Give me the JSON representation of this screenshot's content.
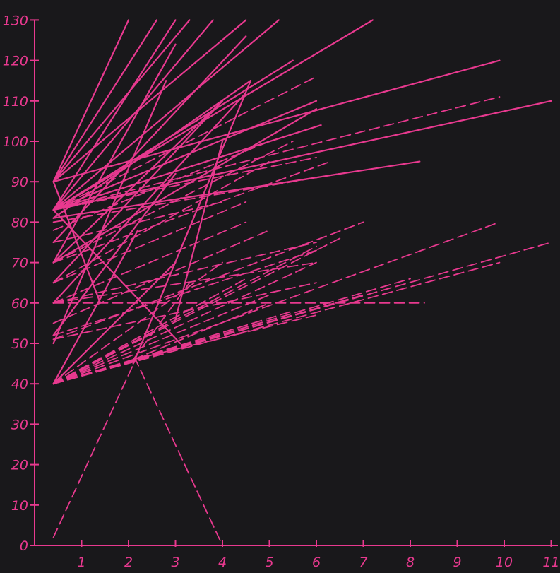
{
  "chart_data": {
    "type": "line",
    "title": "",
    "xlabel": "",
    "ylabel": "",
    "xlim": [
      0,
      11
    ],
    "ylim": [
      0,
      130
    ],
    "x_ticks": [
      "1",
      "2",
      "3",
      "4",
      "5",
      "6",
      "7",
      "8",
      "9",
      "10",
      "11"
    ],
    "y_ticks": [
      "0",
      "10",
      "20",
      "30",
      "40",
      "50",
      "60",
      "70",
      "80",
      "90",
      "100",
      "110",
      "120",
      "130"
    ],
    "grid": false,
    "legend": "none",
    "colors": {
      "background": "#19181b",
      "ink": "#e8398f"
    },
    "series": [
      {
        "style": "solid",
        "points": [
          [
            0.4,
            90
          ],
          [
            2.0,
            130
          ]
        ]
      },
      {
        "style": "solid",
        "points": [
          [
            0.4,
            90
          ],
          [
            2.6,
            130
          ]
        ]
      },
      {
        "style": "solid",
        "points": [
          [
            0.4,
            90
          ],
          [
            3.3,
            130
          ]
        ]
      },
      {
        "style": "solid",
        "points": [
          [
            0.4,
            90
          ],
          [
            4.5,
            130
          ]
        ]
      },
      {
        "style": "solid",
        "points": [
          [
            0.4,
            90
          ],
          [
            9.9,
            120
          ]
        ]
      },
      {
        "style": "solid",
        "points": [
          [
            0.4,
            90
          ],
          [
            1.4,
            60
          ]
        ]
      },
      {
        "style": "solid",
        "points": [
          [
            0.4,
            83
          ],
          [
            3.0,
            130
          ]
        ]
      },
      {
        "style": "solid",
        "points": [
          [
            0.4,
            83
          ],
          [
            3.8,
            130
          ]
        ]
      },
      {
        "style": "solid",
        "points": [
          [
            0.4,
            83
          ],
          [
            5.2,
            130
          ]
        ]
      },
      {
        "style": "solid",
        "points": [
          [
            0.4,
            83
          ],
          [
            5.5,
            120
          ]
        ]
      },
      {
        "style": "solid",
        "points": [
          [
            0.4,
            83
          ],
          [
            7.2,
            130
          ]
        ]
      },
      {
        "style": "solid",
        "points": [
          [
            0.4,
            83
          ],
          [
            6.0,
            110
          ]
        ]
      },
      {
        "style": "solid",
        "points": [
          [
            0.4,
            83
          ],
          [
            6.1,
            104
          ]
        ]
      },
      {
        "style": "solid",
        "points": [
          [
            0.4,
            83
          ],
          [
            11.0,
            110
          ]
        ]
      },
      {
        "style": "solid",
        "points": [
          [
            0.4,
            83
          ],
          [
            3.1,
            50
          ]
        ]
      },
      {
        "style": "solid",
        "points": [
          [
            0.4,
            81
          ],
          [
            4.6,
            115
          ]
        ]
      },
      {
        "style": "solid",
        "points": [
          [
            0.4,
            81
          ],
          [
            8.2,
            95
          ]
        ]
      },
      {
        "style": "solid",
        "points": [
          [
            0.4,
            75
          ],
          [
            4.5,
            126
          ]
        ]
      },
      {
        "style": "solid",
        "points": [
          [
            0.4,
            70
          ],
          [
            3.0,
            124
          ]
        ]
      },
      {
        "style": "solid",
        "points": [
          [
            0.4,
            70
          ],
          [
            4.0,
            110
          ]
        ]
      },
      {
        "style": "solid",
        "points": [
          [
            0.4,
            70
          ],
          [
            6.0,
            108
          ]
        ]
      },
      {
        "style": "solid",
        "points": [
          [
            0.4,
            65
          ],
          [
            4.0,
            110
          ]
        ]
      },
      {
        "style": "solid",
        "points": [
          [
            0.4,
            60
          ],
          [
            4.5,
            112
          ]
        ]
      },
      {
        "style": "solid",
        "points": [
          [
            0.4,
            52
          ],
          [
            3.0,
            92
          ]
        ]
      },
      {
        "style": "solid",
        "points": [
          [
            0.4,
            50
          ],
          [
            2.8,
            115
          ]
        ]
      },
      {
        "style": "solid",
        "points": [
          [
            0.4,
            40
          ],
          [
            2.2,
            78
          ]
        ]
      },
      {
        "style": "solid",
        "points": [
          [
            0.4,
            40
          ],
          [
            3.0,
            70
          ]
        ]
      },
      {
        "style": "solid",
        "points": [
          [
            2.1,
            45
          ],
          [
            4.6,
            115
          ]
        ]
      },
      {
        "style": "solid",
        "points": [
          [
            3.0,
            56
          ],
          [
            4.0,
            100
          ]
        ]
      },
      {
        "style": "dashed",
        "points": [
          [
            0.4,
            83
          ],
          [
            6.0,
            116
          ]
        ]
      },
      {
        "style": "dashed",
        "points": [
          [
            0.4,
            83
          ],
          [
            9.9,
            111
          ]
        ]
      },
      {
        "style": "dashed",
        "points": [
          [
            0.4,
            83
          ],
          [
            6.0,
            96
          ]
        ]
      },
      {
        "style": "dashed",
        "points": [
          [
            0.4,
            80
          ],
          [
            6.5,
            92
          ]
        ]
      },
      {
        "style": "dashed",
        "points": [
          [
            0.4,
            78
          ],
          [
            5.0,
            100
          ]
        ]
      },
      {
        "style": "dashed",
        "points": [
          [
            0.4,
            75
          ],
          [
            4.0,
            85
          ]
        ]
      },
      {
        "style": "dashed",
        "points": [
          [
            0.4,
            70
          ],
          [
            5.5,
            100
          ]
        ]
      },
      {
        "style": "dashed",
        "points": [
          [
            0.4,
            70
          ],
          [
            6.3,
            95
          ]
        ]
      },
      {
        "style": "dashed",
        "points": [
          [
            0.4,
            65
          ],
          [
            5.0,
            95
          ]
        ]
      },
      {
        "style": "dashed",
        "points": [
          [
            0.4,
            65
          ],
          [
            4.5,
            85
          ]
        ]
      },
      {
        "style": "dashed",
        "points": [
          [
            0.4,
            60
          ],
          [
            4.5,
            80
          ]
        ]
      },
      {
        "style": "dashed",
        "points": [
          [
            0.4,
            60
          ],
          [
            6.0,
            75
          ]
        ]
      },
      {
        "style": "dashed",
        "points": [
          [
            0.4,
            60
          ],
          [
            8.3,
            60
          ]
        ]
      },
      {
        "style": "dashed",
        "points": [
          [
            0.4,
            60
          ],
          [
            6.0,
            70
          ]
        ]
      },
      {
        "style": "dashed",
        "points": [
          [
            0.4,
            55
          ],
          [
            5.0,
            78
          ]
        ]
      },
      {
        "style": "dashed",
        "points": [
          [
            0.4,
            52
          ],
          [
            6.0,
            73
          ]
        ]
      },
      {
        "style": "dashed",
        "points": [
          [
            0.4,
            51
          ],
          [
            7.0,
            80
          ]
        ]
      },
      {
        "style": "dashed",
        "points": [
          [
            0.4,
            51
          ],
          [
            6.0,
            65
          ]
        ]
      },
      {
        "style": "dashed",
        "points": [
          [
            0.4,
            40
          ],
          [
            6.0,
            70
          ]
        ]
      },
      {
        "style": "dashed",
        "points": [
          [
            0.4,
            40
          ],
          [
            6.0,
            74
          ]
        ]
      },
      {
        "style": "dashed",
        "points": [
          [
            0.4,
            40
          ],
          [
            6.5,
            76
          ]
        ]
      },
      {
        "style": "dashed",
        "points": [
          [
            0.4,
            40
          ],
          [
            9.9,
            80
          ]
        ]
      },
      {
        "style": "dashed",
        "points": [
          [
            0.4,
            40
          ],
          [
            11.0,
            75
          ]
        ]
      },
      {
        "style": "dashed",
        "points": [
          [
            0.4,
            40
          ],
          [
            9.9,
            70
          ]
        ]
      },
      {
        "style": "dashed",
        "points": [
          [
            0.4,
            40
          ],
          [
            8.0,
            66
          ]
        ]
      },
      {
        "style": "dashed",
        "points": [
          [
            0.4,
            40
          ],
          [
            7.0,
            62
          ]
        ]
      },
      {
        "style": "dashed",
        "points": [
          [
            0.4,
            40
          ],
          [
            5.5,
            58
          ]
        ]
      },
      {
        "style": "dashed",
        "points": [
          [
            0.4,
            40
          ],
          [
            5.0,
            62
          ]
        ]
      },
      {
        "style": "dashed",
        "points": [
          [
            0.4,
            40
          ],
          [
            4.5,
            66
          ]
        ]
      },
      {
        "style": "dashed",
        "points": [
          [
            0.4,
            40
          ],
          [
            4.0,
            70
          ]
        ]
      },
      {
        "style": "dashed",
        "points": [
          [
            0.4,
            2
          ],
          [
            2.15,
            46
          ],
          [
            4.0,
            0
          ]
        ]
      },
      {
        "style": "dashed",
        "points": [
          [
            2.1,
            46
          ],
          [
            3.3,
            65
          ]
        ]
      },
      {
        "style": "dashed",
        "points": [
          [
            2.1,
            46
          ],
          [
            6.0,
            57
          ]
        ]
      },
      {
        "style": "dashed",
        "points": [
          [
            2.1,
            46
          ],
          [
            5.0,
            60
          ]
        ]
      }
    ]
  }
}
